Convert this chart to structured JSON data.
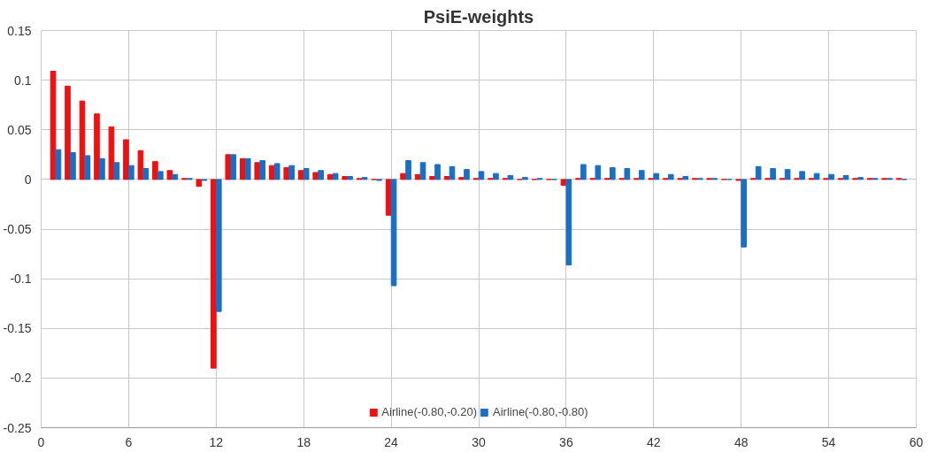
{
  "chart_data": {
    "type": "bar",
    "title": "PsiE-weights",
    "x": [
      1,
      2,
      3,
      4,
      5,
      6,
      7,
      8,
      9,
      10,
      11,
      12,
      13,
      14,
      15,
      16,
      17,
      18,
      19,
      20,
      21,
      22,
      23,
      24,
      25,
      26,
      27,
      28,
      29,
      30,
      31,
      32,
      33,
      34,
      35,
      36,
      37,
      38,
      39,
      40,
      41,
      42,
      43,
      44,
      45,
      46,
      47,
      48,
      49,
      50,
      51,
      52,
      53,
      54,
      55,
      56,
      57,
      58,
      59
    ],
    "series": [
      {
        "name": "Airline(-0.80,-0.20)",
        "color": "#ee1111",
        "values": [
          0.109,
          0.094,
          0.079,
          0.066,
          0.053,
          0.04,
          0.029,
          0.018,
          0.009,
          0.001,
          -0.007,
          -0.19,
          0.025,
          0.021,
          0.017,
          0.014,
          0.012,
          0.009,
          0.007,
          0.005,
          0.003,
          0.001,
          0.0,
          -0.036,
          0.006,
          0.005,
          0.003,
          0.003,
          0.002,
          0.001,
          0.001,
          0.001,
          0.0,
          0.0,
          0.0,
          -0.006,
          0.001,
          0.001,
          0.001,
          0.001,
          0.001,
          0.001,
          0.001,
          0.001,
          0.001,
          0.001,
          0.0,
          -0.001,
          0.001,
          0.001,
          0.001,
          0.001,
          0.001,
          0.001,
          0.001,
          0.001,
          0.001,
          0.001,
          0.001
        ]
      },
      {
        "name": "Airline(-0.80,-0.80)",
        "color": "#1a6fc4",
        "values": [
          0.03,
          0.027,
          0.024,
          0.021,
          0.017,
          0.014,
          0.011,
          0.008,
          0.005,
          0.001,
          -0.001,
          -0.133,
          0.025,
          0.021,
          0.019,
          0.016,
          0.014,
          0.011,
          0.009,
          0.006,
          0.003,
          0.002,
          -0.001,
          -0.107,
          0.019,
          0.017,
          0.015,
          0.013,
          0.01,
          0.008,
          0.006,
          0.004,
          0.002,
          0.001,
          0.0,
          -0.086,
          0.015,
          0.014,
          0.012,
          0.011,
          0.009,
          0.006,
          0.005,
          0.003,
          0.001,
          0.001,
          0.0,
          -0.068,
          0.013,
          0.011,
          0.01,
          0.008,
          0.006,
          0.005,
          0.004,
          0.002,
          0.001,
          0.001,
          0.0
        ]
      }
    ],
    "xlim": [
      0,
      60
    ],
    "xticks": [
      0,
      6,
      12,
      18,
      24,
      30,
      36,
      42,
      48,
      54,
      60
    ],
    "ylim": [
      -0.25,
      0.15
    ],
    "yticks": [
      -0.25,
      -0.2,
      -0.15,
      -0.1,
      -0.05,
      0,
      0.05,
      0.1,
      0.15
    ],
    "grid": true,
    "legend": "bottom"
  }
}
